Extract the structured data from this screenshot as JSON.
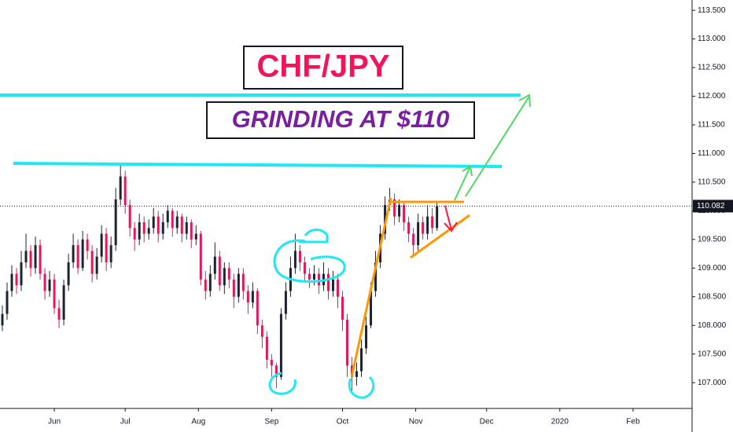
{
  "chart_data": {
    "type": "candlestick",
    "title": "CHF/JPY",
    "subtitle": "GRINDING AT $110",
    "x": [
      -22,
      -20,
      -18,
      -16,
      -14,
      -12,
      -10,
      -8,
      -6,
      -4,
      -2,
      0,
      2,
      4,
      6,
      8,
      10,
      12,
      14,
      16,
      18,
      20,
      22,
      24,
      26,
      28,
      30,
      32,
      34,
      36,
      38,
      40,
      42,
      44,
      46,
      48,
      50,
      52,
      54,
      56,
      58,
      60,
      62,
      64,
      66,
      68,
      70,
      72,
      74,
      76,
      78,
      80,
      82,
      84,
      86,
      88,
      90,
      92,
      94,
      96,
      98,
      100,
      102,
      104,
      106,
      108,
      110,
      112,
      114,
      116,
      118,
      120,
      122,
      124,
      126,
      128,
      130,
      132,
      134,
      136,
      138,
      140,
      142,
      144,
      146,
      148,
      150,
      152,
      154,
      156,
      158,
      160,
      162
    ],
    "open": [
      108.0,
      108.2,
      108.6,
      108.9,
      108.7,
      109.1,
      109.3,
      109.0,
      109.4,
      108.9,
      108.6,
      108.8,
      108.3,
      108.1,
      108.7,
      109.1,
      109.4,
      109.0,
      109.5,
      109.3,
      108.9,
      109.2,
      109.6,
      109.1,
      109.4,
      110.2,
      110.6,
      110.1,
      109.7,
      109.5,
      109.8,
      109.6,
      109.7,
      109.9,
      109.6,
      109.8,
      110.0,
      109.7,
      109.9,
      109.6,
      109.8,
      109.5,
      109.6,
      108.8,
      108.6,
      108.9,
      109.2,
      108.7,
      109.0,
      108.8,
      108.5,
      108.9,
      108.6,
      108.4,
      108.6,
      108.0,
      107.8,
      107.4,
      107.3,
      107.1,
      108.2,
      108.6,
      109.0,
      109.3,
      109.1,
      108.9,
      108.8,
      108.9,
      108.7,
      108.9,
      108.6,
      108.8,
      108.5,
      108.1,
      107.3,
      107.1,
      107.2,
      107.6,
      108.0,
      108.6,
      109.1,
      109.6,
      110.1,
      110.2,
      109.9,
      110.1,
      109.8,
      109.6,
      109.4,
      109.8,
      109.6,
      109.9,
      109.7
    ],
    "high": [
      108.35,
      108.75,
      109.05,
      109.0,
      109.3,
      109.6,
      109.4,
      109.55,
      109.5,
      109.0,
      108.95,
      108.9,
      108.45,
      108.8,
      109.25,
      109.6,
      109.5,
      109.65,
      109.6,
      109.4,
      109.35,
      109.75,
      109.7,
      109.55,
      110.4,
      110.8,
      110.7,
      110.2,
      109.8,
      109.95,
      109.9,
      109.85,
      110.05,
      110.0,
      109.95,
      110.1,
      110.05,
      110.0,
      109.95,
      109.9,
      109.85,
      109.75,
      109.65,
      108.95,
      109.05,
      109.45,
      109.3,
      109.1,
      109.1,
      108.9,
      109.0,
      109.0,
      108.7,
      108.75,
      108.65,
      108.1,
      107.9,
      107.5,
      107.35,
      108.3,
      108.75,
      109.2,
      109.6,
      109.4,
      109.2,
      109.0,
      109.05,
      109.0,
      109.1,
      109.0,
      108.95,
      108.9,
      108.6,
      108.2,
      107.45,
      107.35,
      107.75,
      108.15,
      108.75,
      109.3,
      109.75,
      110.25,
      110.4,
      110.3,
      110.2,
      110.15,
      109.9,
      109.7,
      109.95,
      109.9,
      110.1,
      110.05,
      110.15
    ],
    "low": [
      107.9,
      108.1,
      108.5,
      108.55,
      108.6,
      109.0,
      108.85,
      108.9,
      108.8,
      108.45,
      108.5,
      108.2,
      107.95,
      108.0,
      108.6,
      109.0,
      108.9,
      108.95,
      109.15,
      108.75,
      108.8,
      109.1,
      108.95,
      109.0,
      109.3,
      110.1,
      109.95,
      109.55,
      109.3,
      109.4,
      109.45,
      109.5,
      109.6,
      109.45,
      109.5,
      109.7,
      109.55,
      109.6,
      109.45,
      109.5,
      109.35,
      109.4,
      108.7,
      108.45,
      108.5,
      108.8,
      108.6,
      108.55,
      108.65,
      108.3,
      108.4,
      108.45,
      108.2,
      108.3,
      107.85,
      107.6,
      107.25,
      107.1,
      106.9,
      107.05,
      108.1,
      108.5,
      108.9,
      108.95,
      108.75,
      108.65,
      108.7,
      108.55,
      108.6,
      108.45,
      108.5,
      108.3,
      107.9,
      107.1,
      106.85,
      106.95,
      107.1,
      107.5,
      107.95,
      108.5,
      109.0,
      109.5,
      110.0,
      109.75,
      109.8,
      109.65,
      109.45,
      109.2,
      109.3,
      109.5,
      109.5,
      109.6,
      109.65
    ],
    "close": [
      108.2,
      108.6,
      108.9,
      108.7,
      109.1,
      109.3,
      109.0,
      109.4,
      108.9,
      108.6,
      108.8,
      108.3,
      108.1,
      108.7,
      109.1,
      109.4,
      109.0,
      109.5,
      109.3,
      108.9,
      109.2,
      109.6,
      109.1,
      109.4,
      110.2,
      110.6,
      110.1,
      109.7,
      109.5,
      109.8,
      109.6,
      109.7,
      109.9,
      109.6,
      109.8,
      110.0,
      109.7,
      109.9,
      109.6,
      109.8,
      109.5,
      109.6,
      108.8,
      108.6,
      108.9,
      109.2,
      108.7,
      109.0,
      108.8,
      108.5,
      108.9,
      108.6,
      108.4,
      108.6,
      108.0,
      107.8,
      107.4,
      107.3,
      107.1,
      108.2,
      108.6,
      109.0,
      109.3,
      109.1,
      108.9,
      108.8,
      108.9,
      108.7,
      108.9,
      108.6,
      108.8,
      108.5,
      108.1,
      107.3,
      107.1,
      107.2,
      107.6,
      108.0,
      108.6,
      109.1,
      109.6,
      110.1,
      110.2,
      109.9,
      110.1,
      109.8,
      109.6,
      109.4,
      109.8,
      109.6,
      109.9,
      109.7,
      110.08
    ],
    "up_color": "#1e2330",
    "down_color": "#e0195a",
    "xlim": [
      -23,
      270
    ],
    "xticks": [
      {
        "value": 0,
        "label": "Jun"
      },
      {
        "value": 30,
        "label": "Jul"
      },
      {
        "value": 61,
        "label": "Aug"
      },
      {
        "value": 92,
        "label": "Sep"
      },
      {
        "value": 122,
        "label": "Oct"
      },
      {
        "value": 153,
        "label": "Nov"
      },
      {
        "value": 183,
        "label": "Dec"
      },
      {
        "value": 214,
        "label": "2020"
      },
      {
        "value": 245,
        "label": "Feb"
      }
    ],
    "ylim": [
      106.55,
      113.68
    ],
    "yticks": [
      {
        "value": 107,
        "label": "107.000"
      },
      {
        "value": 107.5,
        "label": "107.500"
      },
      {
        "value": 108,
        "label": "108.000"
      },
      {
        "value": 108.5,
        "label": "108.500"
      },
      {
        "value": 109,
        "label": "109.000"
      },
      {
        "value": 109.5,
        "label": "109.500"
      },
      {
        "value": 110,
        "label": "110.000"
      },
      {
        "value": 110.5,
        "label": "110.500"
      },
      {
        "value": 111,
        "label": "111.000"
      },
      {
        "value": 111.5,
        "label": "111.500"
      },
      {
        "value": 112,
        "label": "112.000"
      },
      {
        "value": 112.5,
        "label": "112.500"
      },
      {
        "value": 113,
        "label": "113.000"
      },
      {
        "value": 113.5,
        "label": "113.500"
      }
    ],
    "last_price": 110.082
  }
}
